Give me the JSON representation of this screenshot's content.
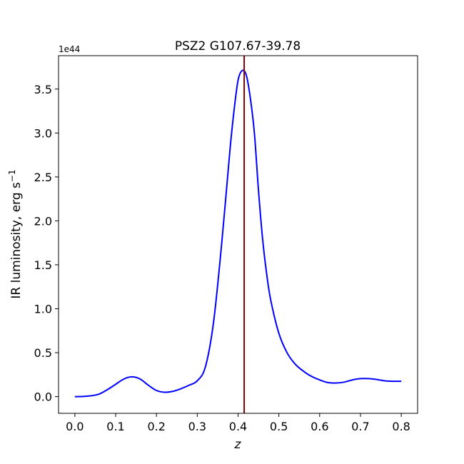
{
  "chart_data": {
    "type": "line",
    "title": "PSZ2 G107.67-39.78",
    "xlabel": "z",
    "ylabel_main": "IR luminosity, erg s",
    "ylabel_sup": "−1",
    "y_offset_label": "1e44",
    "xlim": [
      -0.04,
      0.84
    ],
    "ylim": [
      -0.19,
      3.88
    ],
    "x_ticks": [
      0.0,
      0.1,
      0.2,
      0.3,
      0.4,
      0.5,
      0.6,
      0.7,
      0.8
    ],
    "x_tick_labels": [
      "0.0",
      "0.1",
      "0.2",
      "0.3",
      "0.4",
      "0.5",
      "0.6",
      "0.7",
      "0.8"
    ],
    "y_ticks": [
      0.0,
      0.5,
      1.0,
      1.5,
      2.0,
      2.5,
      3.0,
      3.5
    ],
    "y_tick_labels": [
      "0.0",
      "0.5",
      "1.0",
      "1.5",
      "2.0",
      "2.5",
      "3.0",
      "3.5"
    ],
    "grid": false,
    "series": [
      {
        "color": "#0000ff",
        "x": [
          0.0,
          0.02,
          0.04,
          0.06,
          0.08,
          0.1,
          0.12,
          0.14,
          0.16,
          0.18,
          0.2,
          0.22,
          0.24,
          0.26,
          0.28,
          0.3,
          0.32,
          0.34,
          0.36,
          0.38,
          0.39,
          0.4,
          0.41,
          0.42,
          0.43,
          0.44,
          0.45,
          0.46,
          0.47,
          0.48,
          0.5,
          0.52,
          0.54,
          0.56,
          0.58,
          0.6,
          0.62,
          0.64,
          0.66,
          0.68,
          0.7,
          0.72,
          0.74,
          0.76,
          0.78,
          0.8
        ],
        "y": [
          0.0,
          0.002,
          0.01,
          0.03,
          0.08,
          0.14,
          0.2,
          0.225,
          0.2,
          0.13,
          0.07,
          0.05,
          0.06,
          0.09,
          0.13,
          0.18,
          0.34,
          0.85,
          1.75,
          2.8,
          3.25,
          3.6,
          3.71,
          3.66,
          3.4,
          3.0,
          2.35,
          1.8,
          1.4,
          1.1,
          0.72,
          0.5,
          0.37,
          0.29,
          0.23,
          0.19,
          0.16,
          0.155,
          0.165,
          0.19,
          0.205,
          0.205,
          0.195,
          0.18,
          0.175,
          0.175
        ]
      }
    ],
    "vertical_line": {
      "x": 0.415,
      "color": "#800000"
    }
  }
}
